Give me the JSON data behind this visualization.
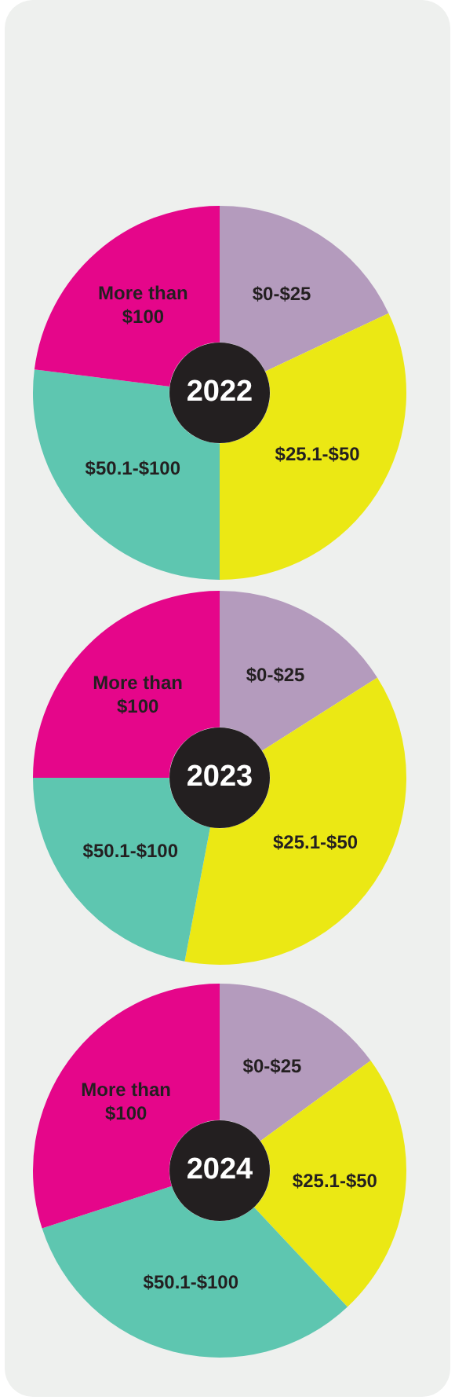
{
  "chart_data": [
    {
      "type": "donut",
      "title": "2022",
      "categories": [
        "$0-$25",
        "$25.1-$50",
        "$50.1-$100",
        "More than $100"
      ],
      "values": [
        18,
        32,
        27,
        23
      ],
      "colors": [
        "#b49bbd",
        "#ebe814",
        "#5ec6b0",
        "#e5068a"
      ],
      "legend": false
    },
    {
      "type": "donut",
      "title": "2023",
      "categories": [
        "$0-$25",
        "$25.1-$50",
        "$50.1-$100",
        "More than $100"
      ],
      "values": [
        16,
        37,
        22,
        25
      ],
      "colors": [
        "#b49bbd",
        "#ebe814",
        "#5ec6b0",
        "#e5068a"
      ],
      "legend": false
    },
    {
      "type": "donut",
      "title": "2024",
      "categories": [
        "$0-$25",
        "$25.1-$50",
        "$50.1-$100",
        "More than $100"
      ],
      "values": [
        15,
        23,
        32,
        30
      ],
      "colors": [
        "#b49bbd",
        "#ebe814",
        "#5ec6b0",
        "#e5068a"
      ],
      "legend": false
    }
  ]
}
